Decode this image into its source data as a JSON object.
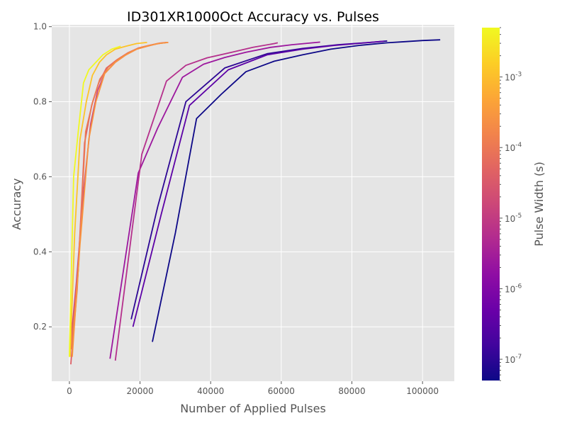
{
  "chart_data": {
    "type": "line",
    "title": "ID301XR1000Oct Accuracy vs. Pulses",
    "xlabel": "Number of Applied Pulses",
    "ylabel": "Accuracy",
    "xlim": [
      -5000,
      109000
    ],
    "ylim": [
      0.055,
      1.005
    ],
    "x_ticks": [
      0,
      20000,
      40000,
      60000,
      80000,
      100000
    ],
    "y_ticks": [
      0.2,
      0.4,
      0.6,
      0.8,
      1.0
    ],
    "x_tick_labels": [
      "0",
      "20000",
      "40000",
      "60000",
      "80000",
      "100000"
    ],
    "y_tick_labels": [
      "0.2",
      "0.4",
      "0.6",
      "0.8",
      "1.0"
    ],
    "grid": true,
    "colorbar": {
      "label": "Pulse Width (s)",
      "scale": "log",
      "range": [
        5e-08,
        0.005
      ],
      "colormap": "plasma",
      "tick_values": [
        1e-07,
        1e-06,
        1e-05,
        0.0001,
        0.001
      ],
      "tick_mantissa": "10",
      "tick_exponents": [
        "-7",
        "-6",
        "-5",
        "-4",
        "-3"
      ]
    },
    "series": [
      {
        "pulse_width": 5e-08,
        "color": "#0d0887",
        "x": [
          23500,
          30000,
          36000,
          43000,
          50000,
          58000,
          66000,
          74000,
          82000,
          90000,
          95000,
          100000,
          105000
        ],
        "y": [
          0.16,
          0.45,
          0.755,
          0.82,
          0.88,
          0.908,
          0.925,
          0.94,
          0.95,
          0.957,
          0.96,
          0.963,
          0.965
        ]
      },
      {
        "pulse_width": 1e-07,
        "color": "#2c0594",
        "x": [
          17500,
          25000,
          33000,
          44000,
          56000,
          66000,
          76000,
          85000,
          90000
        ],
        "y": [
          0.22,
          0.52,
          0.8,
          0.89,
          0.928,
          0.942,
          0.952,
          0.958,
          0.962
        ]
      },
      {
        "pulse_width": 5e-07,
        "color": "#5c01a6",
        "x": [
          18000,
          26000,
          34000,
          45000,
          56000,
          66000,
          75000,
          84000,
          89000
        ],
        "y": [
          0.2,
          0.5,
          0.79,
          0.885,
          0.925,
          0.94,
          0.95,
          0.957,
          0.961
        ]
      },
      {
        "pulse_width": 2e-06,
        "color": "#9c179e",
        "x": [
          11500,
          19500,
          25000,
          32000,
          38000,
          44000,
          50000,
          57000,
          63000,
          70000,
          71000
        ],
        "y": [
          0.115,
          0.61,
          0.73,
          0.865,
          0.9,
          0.918,
          0.932,
          0.945,
          0.952,
          0.958,
          0.959
        ]
      },
      {
        "pulse_width": 5e-06,
        "color": "#b52f8c",
        "x": [
          13000,
          20500,
          27500,
          33000,
          39000,
          46000,
          52000,
          58000,
          59000
        ],
        "y": [
          0.11,
          0.66,
          0.855,
          0.897,
          0.917,
          0.932,
          0.945,
          0.955,
          0.957
        ]
      },
      {
        "pulse_width": 2e-05,
        "color": "#cc4778",
        "x": [
          300,
          2000,
          4000,
          6000,
          8000,
          10000,
          13000,
          16000,
          19000,
          22000,
          25000,
          27000
        ],
        "y": [
          0.15,
          0.32,
          0.56,
          0.74,
          0.83,
          0.875,
          0.905,
          0.925,
          0.94,
          0.948,
          0.955,
          0.957
        ]
      },
      {
        "pulse_width": 5e-05,
        "color": "#de5f65",
        "x": [
          400,
          2200,
          4300,
          6300,
          8300,
          10500,
          13500,
          16500,
          19500,
          22500,
          25500,
          27500
        ],
        "y": [
          0.1,
          0.3,
          0.69,
          0.79,
          0.85,
          0.89,
          0.912,
          0.93,
          0.943,
          0.95,
          0.956,
          0.958
        ]
      },
      {
        "pulse_width": 0.0001,
        "color": "#ed7953",
        "x": [
          500,
          2500,
          4600,
          6600,
          8600,
          11000,
          14000,
          17000,
          20000,
          23000,
          26000,
          28000
        ],
        "y": [
          0.14,
          0.35,
          0.72,
          0.8,
          0.86,
          0.892,
          0.915,
          0.932,
          0.944,
          0.951,
          0.956,
          0.958
        ]
      },
      {
        "pulse_width": 0.0003,
        "color": "#f89540",
        "x": [
          800,
          3000,
          5500,
          7500,
          10000,
          13000,
          16000,
          19000,
          22000,
          25000,
          28000
        ],
        "y": [
          0.12,
          0.42,
          0.7,
          0.8,
          0.875,
          0.905,
          0.925,
          0.94,
          0.948,
          0.955,
          0.958
        ]
      },
      {
        "pulse_width": 0.001,
        "color": "#fdc328",
        "x": [
          200,
          1500,
          3000,
          4800,
          6500,
          8500,
          10500,
          13000,
          16000,
          19000,
          22000
        ],
        "y": [
          0.12,
          0.45,
          0.7,
          0.8,
          0.87,
          0.905,
          0.925,
          0.94,
          0.948,
          0.955,
          0.958
        ]
      },
      {
        "pulse_width": 0.004,
        "color": "#f0f921",
        "x": [
          0,
          1200,
          2500,
          4000,
          5500,
          7500,
          9500,
          12000,
          14500
        ],
        "y": [
          0.12,
          0.6,
          0.72,
          0.85,
          0.885,
          0.905,
          0.925,
          0.94,
          0.948
        ]
      }
    ]
  }
}
